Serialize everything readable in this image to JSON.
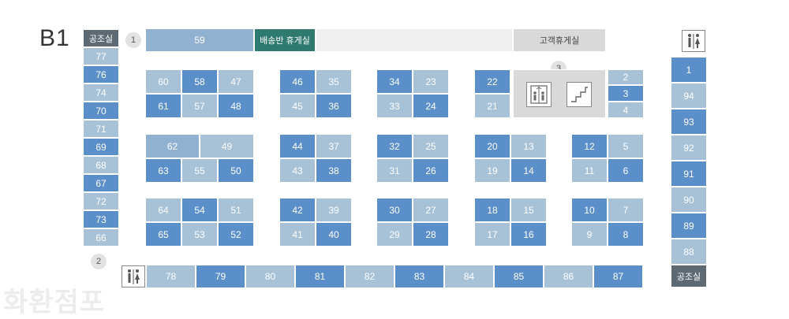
{
  "floor_label": "B1",
  "watermark": "화환점포",
  "markers": [
    "1",
    "2",
    "3"
  ],
  "facilities": {
    "maintenance_top": "공조실",
    "maintenance_bottom": "공조실",
    "delivery_lounge": "배송반 휴게실",
    "customer_lounge": "고객휴게실"
  },
  "icons": {
    "restroom": "restroom-icon",
    "elevator": "elevator-icon",
    "stairs": "stairs-icon"
  },
  "stores": {
    "s59": "59",
    "left": [
      "77",
      "76",
      "74",
      "70",
      "71",
      "69",
      "68",
      "67",
      "72",
      "73",
      "66"
    ],
    "right": [
      "1",
      "94",
      "93",
      "92",
      "91",
      "90",
      "89",
      "88"
    ],
    "bottom": [
      "78",
      "79",
      "80",
      "81",
      "82",
      "83",
      "84",
      "85",
      "86",
      "87"
    ],
    "b1": [
      "60",
      "58",
      "47",
      "61",
      "57",
      "48"
    ],
    "b1r2": [
      "62",
      "49",
      "63",
      "55",
      "50"
    ],
    "b1r3": [
      "64",
      "54",
      "51",
      "65",
      "53",
      "52"
    ],
    "b2": [
      "46",
      "35",
      "45",
      "36"
    ],
    "b2r2": [
      "44",
      "37",
      "43",
      "38"
    ],
    "b2r3": [
      "42",
      "39",
      "41",
      "40"
    ],
    "b3": [
      "34",
      "23",
      "33",
      "24"
    ],
    "b3r2": [
      "32",
      "25",
      "31",
      "26"
    ],
    "b3r3": [
      "30",
      "27",
      "29",
      "28"
    ],
    "b4": [
      "22",
      "21"
    ],
    "b4r2": [
      "20",
      "13",
      "19",
      "14"
    ],
    "b4r3": [
      "18",
      "15",
      "17",
      "16"
    ],
    "b5": [
      "2",
      "3",
      "4"
    ],
    "b5r2": [
      "12",
      "5",
      "11",
      "6"
    ],
    "b5r3": [
      "10",
      "7",
      "9",
      "8"
    ]
  }
}
